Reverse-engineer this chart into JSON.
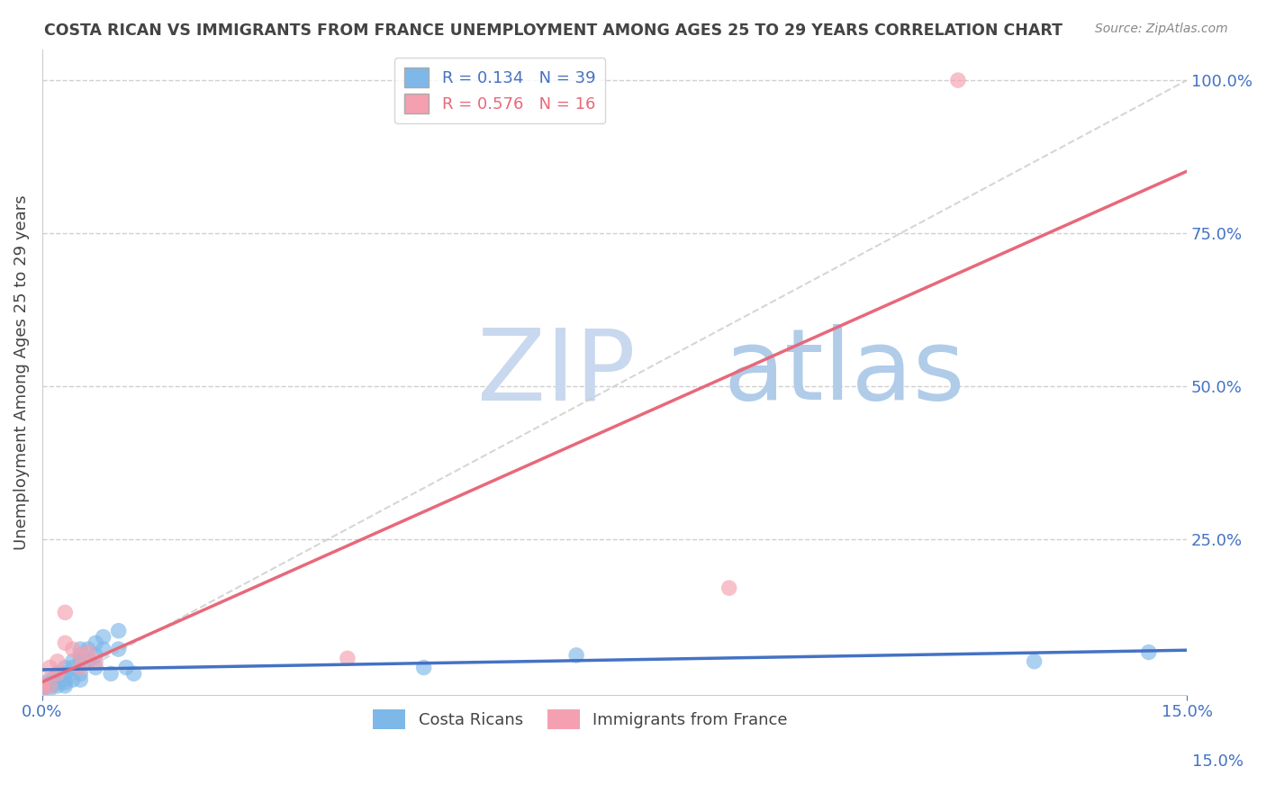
{
  "title": "COSTA RICAN VS IMMIGRANTS FROM FRANCE UNEMPLOYMENT AMONG AGES 25 TO 29 YEARS CORRELATION CHART",
  "source": "Source: ZipAtlas.com",
  "ylabel": "Unemployment Among Ages 25 to 29 years",
  "watermark_zip": "ZIP",
  "watermark_atlas": "atlas",
  "xlim": [
    0.0,
    0.15
  ],
  "ylim": [
    -0.005,
    1.05
  ],
  "xtick_labels": [
    "0.0%",
    "15.0%"
  ],
  "xtick_vals": [
    0.0,
    0.15
  ],
  "ytick_vals": [
    1.0,
    0.75,
    0.5,
    0.25
  ],
  "series1_label": "Costa Ricans",
  "series1_R": "0.134",
  "series1_N": "39",
  "series1_color": "#7eb8e8",
  "series1_x": [
    0.0,
    0.0,
    0.001,
    0.001,
    0.001,
    0.001,
    0.002,
    0.002,
    0.002,
    0.002,
    0.003,
    0.003,
    0.003,
    0.003,
    0.003,
    0.004,
    0.004,
    0.004,
    0.005,
    0.005,
    0.005,
    0.005,
    0.005,
    0.006,
    0.006,
    0.007,
    0.007,
    0.007,
    0.008,
    0.008,
    0.009,
    0.01,
    0.01,
    0.011,
    0.012,
    0.05,
    0.07,
    0.13,
    0.145
  ],
  "series1_y": [
    0.01,
    0.005,
    0.02,
    0.015,
    0.01,
    0.005,
    0.03,
    0.02,
    0.015,
    0.01,
    0.04,
    0.03,
    0.02,
    0.015,
    0.01,
    0.05,
    0.04,
    0.02,
    0.07,
    0.06,
    0.05,
    0.03,
    0.02,
    0.07,
    0.05,
    0.08,
    0.06,
    0.04,
    0.09,
    0.07,
    0.03,
    0.1,
    0.07,
    0.04,
    0.03,
    0.04,
    0.06,
    0.05,
    0.065
  ],
  "series2_label": "Immigrants from France",
  "series2_R": "0.576",
  "series2_N": "16",
  "series2_color": "#f4a0b0",
  "series2_x": [
    0.0,
    0.0,
    0.001,
    0.001,
    0.002,
    0.002,
    0.003,
    0.003,
    0.004,
    0.005,
    0.005,
    0.006,
    0.007,
    0.04,
    0.09,
    0.12
  ],
  "series2_y": [
    0.015,
    0.005,
    0.04,
    0.01,
    0.05,
    0.03,
    0.13,
    0.08,
    0.07,
    0.06,
    0.04,
    0.065,
    0.05,
    0.055,
    0.17,
    1.0
  ],
  "trend1_color": "#4472c4",
  "trend2_color": "#e8687a",
  "diag_color": "#cccccc",
  "grid_color": "#d0d0d0",
  "title_color": "#444444",
  "axis_label_color": "#4472c4",
  "watermark_zip_color": "#c8d8ee",
  "watermark_atlas_color": "#b0cce8",
  "background_color": "#ffffff",
  "legend_facecolor": "#ffffff",
  "right_ytick_labels": [
    "100.0%",
    "75.0%",
    "50.0%",
    "25.0%"
  ],
  "right_ytick_vals": [
    1.0,
    0.75,
    0.5,
    0.25
  ],
  "right_bottom_label": "15.0%"
}
